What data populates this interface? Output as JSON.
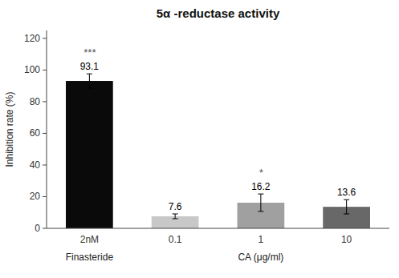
{
  "chart_data": {
    "type": "bar",
    "title": "5α -reductase activity",
    "y_label": "Inhibition rate (%)",
    "categories": [
      "2nM",
      "0.1",
      "1",
      "10"
    ],
    "values": [
      93.1,
      7.6,
      16.2,
      13.6
    ],
    "errors": [
      4.5,
      1.5,
      5.5,
      4.5
    ],
    "colors": [
      "#0a0a0a",
      "#c8c8c8",
      "#a0a0a0",
      "#686868"
    ],
    "data_labels": true,
    "significance": [
      "***",
      null,
      "*",
      null
    ],
    "xlabel_groups": [
      {
        "label": "Finasteride",
        "categories": [
          "2nM"
        ]
      },
      {
        "label": "CA (μg/ml)",
        "categories": [
          "0.1",
          "1",
          "10"
        ]
      }
    ],
    "ylim": [
      0,
      125
    ],
    "yticks": [
      0,
      20,
      40,
      60,
      80,
      100,
      120
    ],
    "grid": false
  }
}
